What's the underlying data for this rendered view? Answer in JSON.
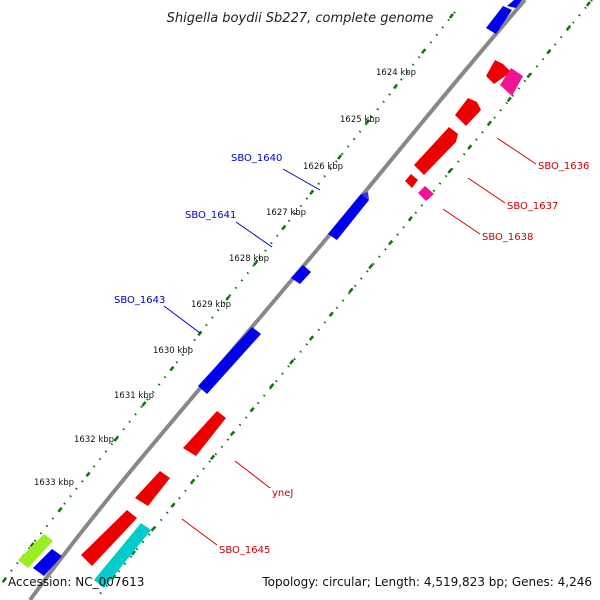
{
  "title": "Shigella boydii Sb227, complete genome",
  "footer": {
    "accession": "Accession: NC_007613",
    "topology": "Topology: circular; Length: 4,519,823 bp; Genes: 4,246"
  },
  "ticks": [
    "1624 kbp",
    "1625 kbp",
    "1626 kbp",
    "1627 kbp",
    "1628 kbp",
    "1629 kbp",
    "1630 kbp",
    "1631 kbp",
    "1632 kbp",
    "1633 kbp"
  ],
  "genes_forward": [
    "SBO_1640",
    "SBO_1641",
    "SBO_1643"
  ],
  "genes_reverse": [
    "SBO_1636",
    "SBO_1637",
    "SBO_1638",
    "yneJ",
    "SBO_1645"
  ],
  "colors": {
    "forward": "#0000ee",
    "reverse": "#ee0000",
    "pink": "#ee1493",
    "cyan": "#00cccc",
    "lime": "#99ee22",
    "dots": "#117711",
    "backbone": "#888888"
  }
}
